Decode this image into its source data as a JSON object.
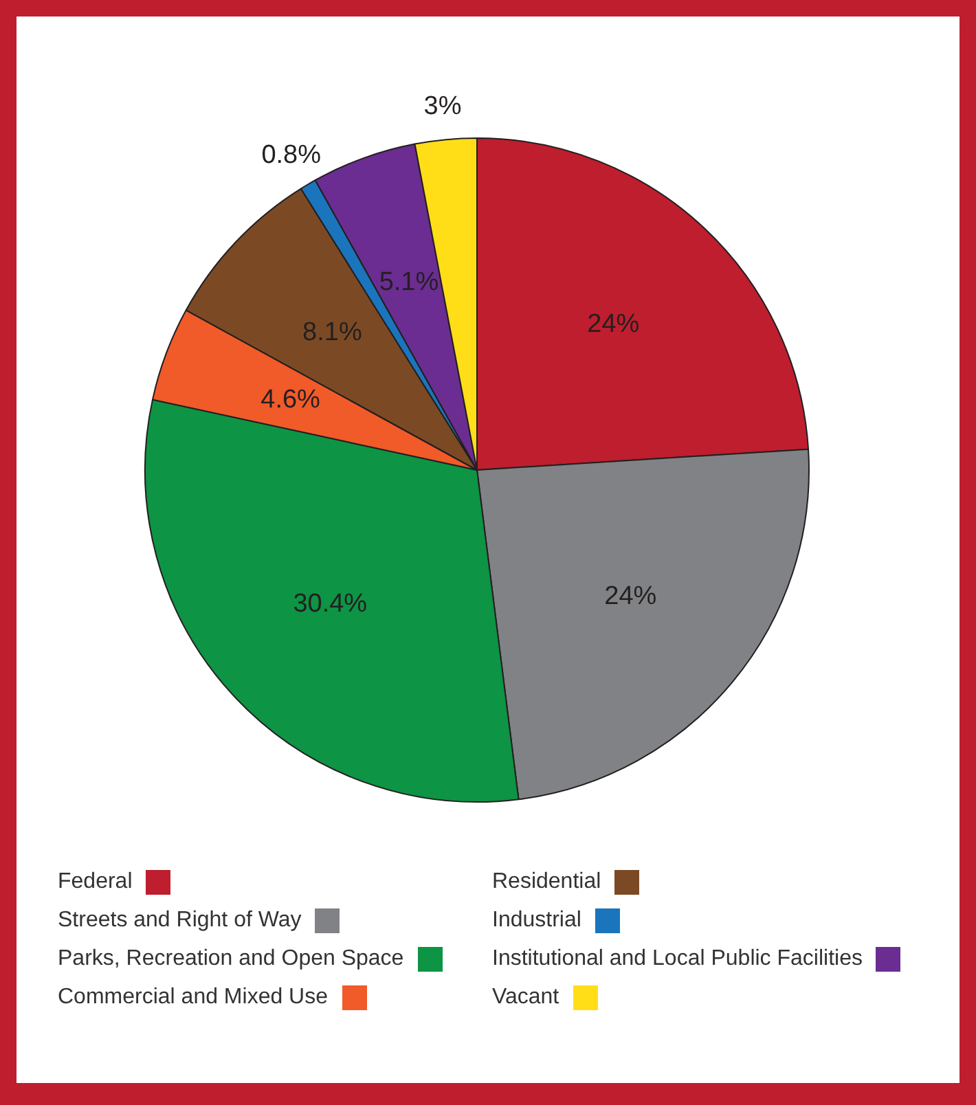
{
  "chart_data": {
    "type": "pie",
    "categories": [
      "Federal",
      "Streets and Right of Way",
      "Parks, Recreation and Open Space",
      "Commercial and Mixed Use",
      "Residential",
      "Industrial",
      "Institutional and Local Public Facilities",
      "Vacant"
    ],
    "values": [
      24,
      24,
      30.4,
      4.6,
      8.1,
      0.8,
      5.1,
      3
    ],
    "colors": [
      "#be1e2d",
      "#808285",
      "#0d9444",
      "#f15a29",
      "#7b4a24",
      "#1b75bc",
      "#6b2d91",
      "#ffde17"
    ],
    "value_labels": [
      "24%",
      "24%",
      "30.4%",
      "4.6%",
      "8.1%",
      "0.8%",
      "5.1%",
      "3%"
    ],
    "legend": "bottom"
  }
}
